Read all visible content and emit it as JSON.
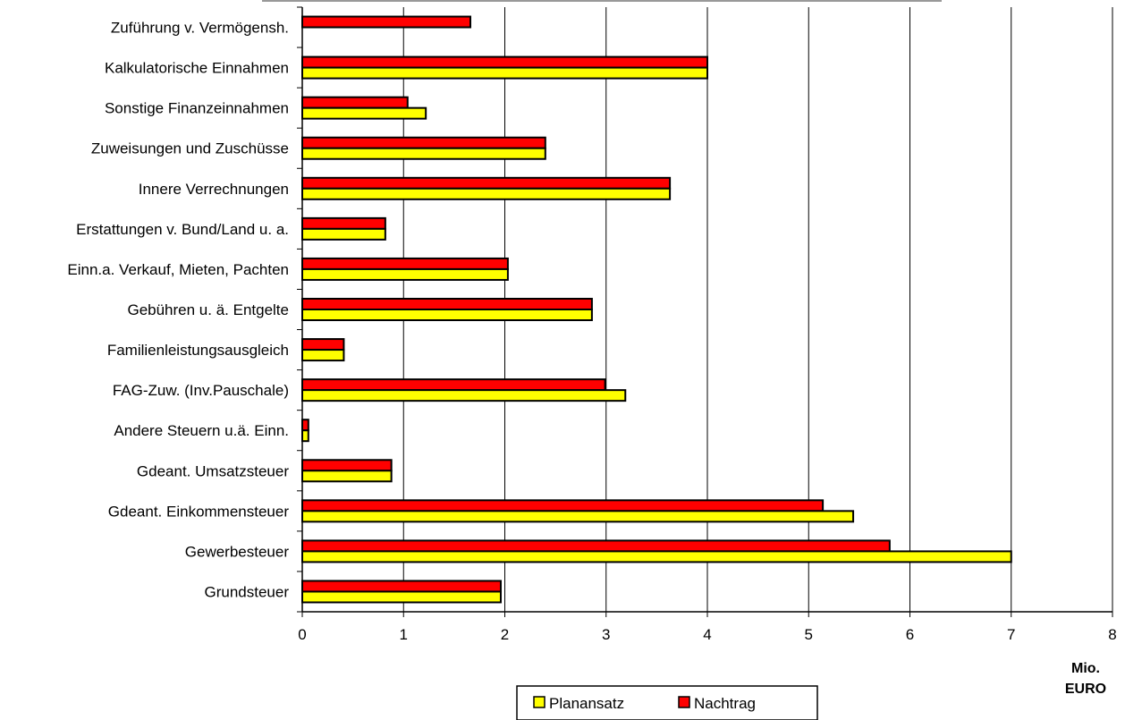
{
  "chart_data": {
    "type": "bar",
    "orientation": "horizontal",
    "categories": [
      "Zuführung v. Vermögensh.",
      "Kalkulatorische Einnahmen",
      "Sonstige Finanzeinnahmen",
      "Zuweisungen und Zuschüsse",
      "Innere Verrechnungen",
      "Erstattungen v. Bund/Land u. a.",
      "Einn.a. Verkauf, Mieten, Pachten",
      "Gebühren u. ä. Entgelte",
      "Familienleistungsausgleich",
      "FAG-Zuw. (Inv.Pauschale)",
      "Andere Steuern u.ä. Einn.",
      "Gdeant. Umsatzsteuer",
      "Gdeant. Einkommensteuer",
      "Gewerbesteuer",
      "Grundsteuer"
    ],
    "series": [
      {
        "name": "Nachtrag",
        "color": "#ff0000",
        "values": [
          1.66,
          4.0,
          1.04,
          2.4,
          3.63,
          0.82,
          2.03,
          2.86,
          0.41,
          2.99,
          0.06,
          0.88,
          5.14,
          5.8,
          1.96
        ]
      },
      {
        "name": "Planansatz",
        "color": "#ffff00",
        "values": [
          0,
          4.0,
          1.22,
          2.4,
          3.63,
          0.82,
          2.03,
          2.86,
          0.41,
          3.19,
          0.06,
          0.88,
          5.44,
          7.0,
          1.96
        ]
      }
    ],
    "xlim": [
      0,
      8
    ],
    "xticks": [
      "0",
      "1",
      "2",
      "3",
      "4",
      "5",
      "6",
      "7",
      "8"
    ],
    "xlabel_lines": [
      "Mio.",
      "EURO"
    ],
    "grid": "vertical",
    "legend": {
      "position": "bottom",
      "entries": [
        {
          "label": "Planansatz",
          "color": "#ffff00"
        },
        {
          "label": "Nachtrag",
          "color": "#ff0000"
        }
      ]
    }
  }
}
